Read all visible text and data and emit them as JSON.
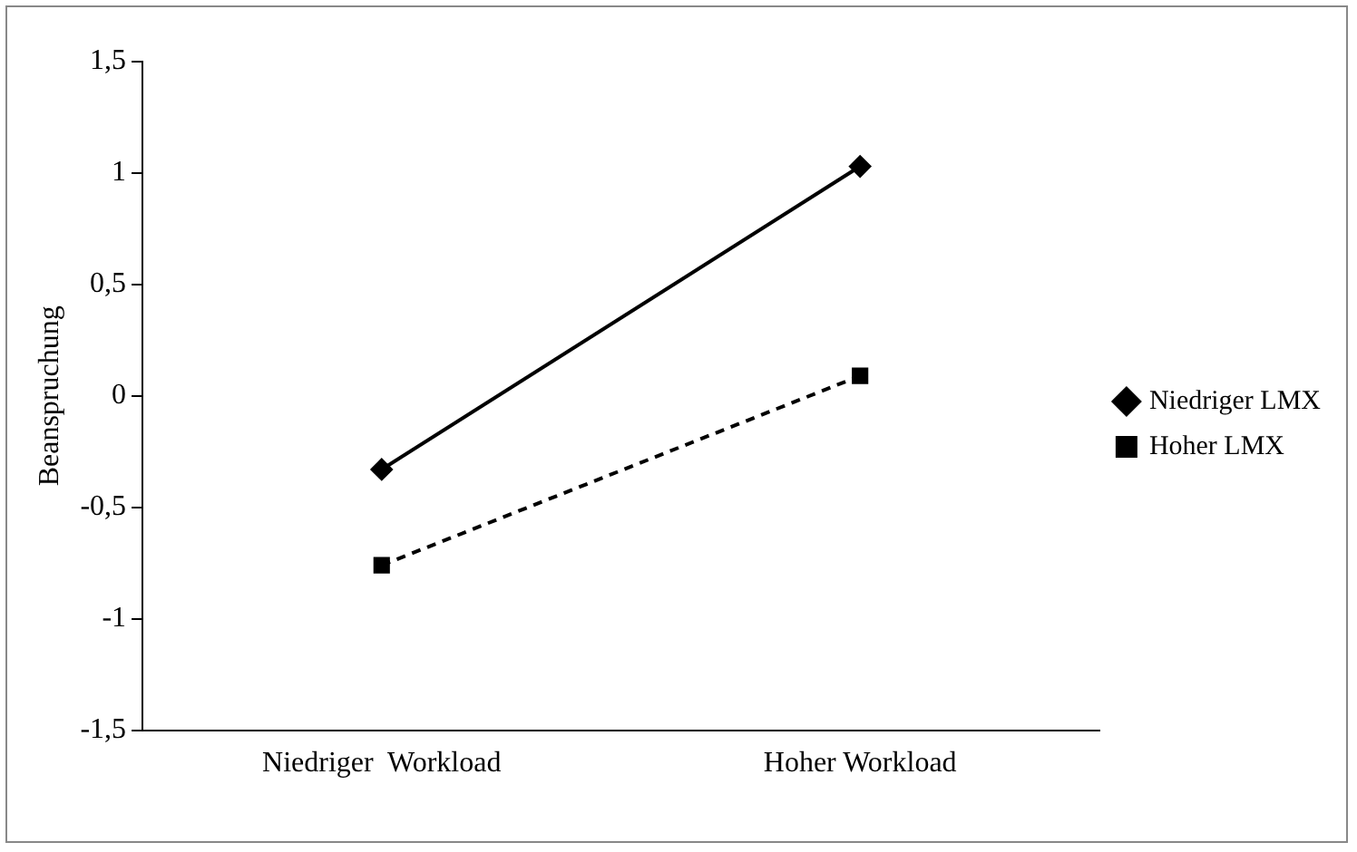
{
  "chart_data": {
    "type": "line",
    "ylabel": "Beanspruchung",
    "categories": [
      "Niedriger  Workload",
      "Hoher Workload"
    ],
    "series": [
      {
        "name": "Niedriger LMX",
        "color": "#000000",
        "values": [
          -0.33,
          1.03
        ],
        "marker": "diamond",
        "line_style": "solid"
      },
      {
        "name": "Hoher LMX",
        "color": "#000000",
        "values": [
          -0.76,
          0.09
        ],
        "marker": "square",
        "line_style": "dashed"
      }
    ],
    "ylim": [
      -1.5,
      1.5
    ],
    "yticks": [
      {
        "value": -1.5,
        "label": "-1,5"
      },
      {
        "value": -1,
        "label": "-1"
      },
      {
        "value": -0.5,
        "label": "-0,5"
      },
      {
        "value": 0,
        "label": "0"
      },
      {
        "value": 0.5,
        "label": "0,5"
      },
      {
        "value": 1,
        "label": "1"
      },
      {
        "value": 1.5,
        "label": "1,5"
      }
    ],
    "grid": false,
    "legend": "right"
  }
}
